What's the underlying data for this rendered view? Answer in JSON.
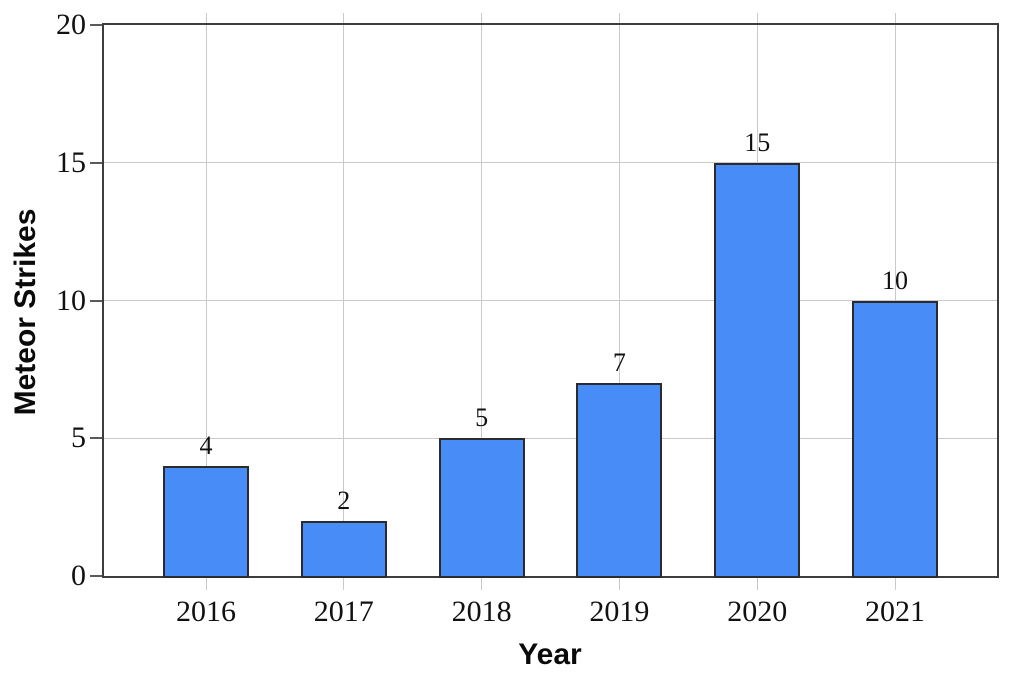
{
  "chart_data": {
    "type": "bar",
    "categories": [
      "2016",
      "2017",
      "2018",
      "2019",
      "2020",
      "2021"
    ],
    "values": [
      4,
      2,
      5,
      7,
      15,
      10
    ],
    "bar_value_labels": [
      "4",
      "2",
      "5",
      "7",
      "15",
      "10"
    ],
    "xlabel": "Year",
    "ylabel": "Meteor Strikes",
    "ylim": [
      0,
      20
    ],
    "yticks": [
      0,
      5,
      10,
      15,
      20
    ],
    "grid": "on",
    "legend_position": "none",
    "colors": {
      "bar_fill": "#488cf7",
      "bar_border": "#2b2b2b",
      "frame": "#3d3d3d",
      "grid": "#c9c9c9",
      "tick": "#5a5a5a",
      "text": "#111111"
    }
  }
}
